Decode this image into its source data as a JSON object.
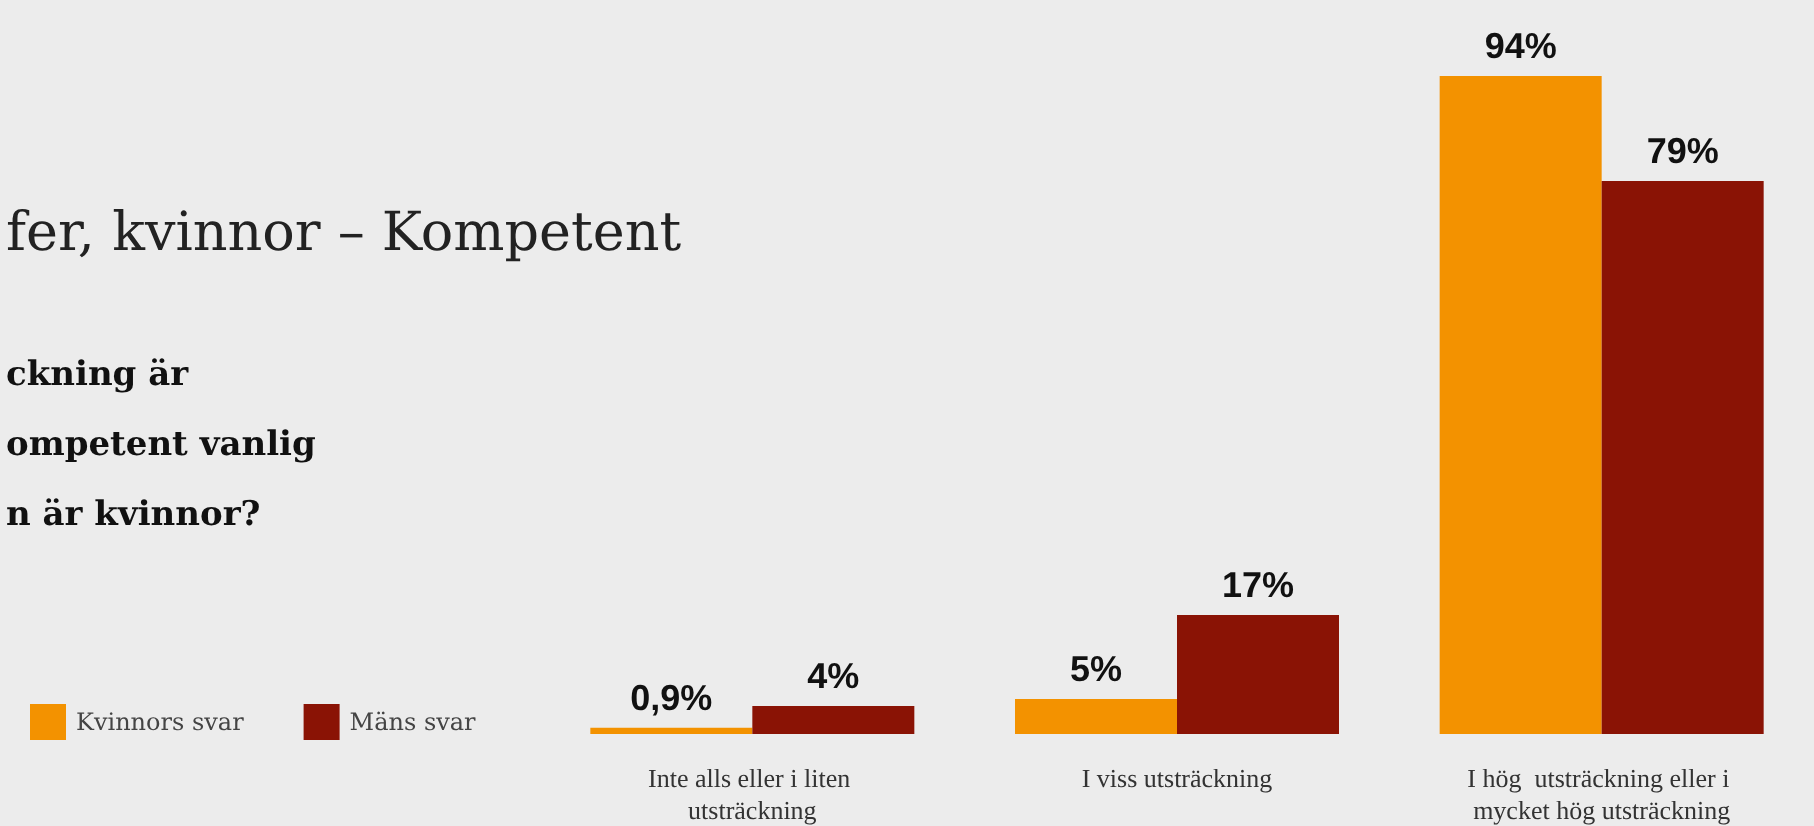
{
  "chart_data": {
    "type": "bar",
    "title": "fer, kvinnor – Kompetent",
    "subtitle": "ckning är\nompetent vanlig\nn är kvinnor?",
    "categories": [
      "Inte alls eller i liten utsträckning",
      "I viss utsträckning",
      "I hög  utsträckning eller i mycket hög utsträckning"
    ],
    "series": [
      {
        "name": "Kvinnors svar",
        "color": "#f39200",
        "values": [
          0.9,
          5,
          94
        ],
        "value_labels": [
          "0,9%",
          "5%",
          "94%"
        ]
      },
      {
        "name": "Mäns svar",
        "color": "#8a1305",
        "values": [
          4,
          17,
          79
        ],
        "value_labels": [
          "4%",
          "17%",
          "79%"
        ]
      }
    ],
    "legend": "bottom left"
  }
}
